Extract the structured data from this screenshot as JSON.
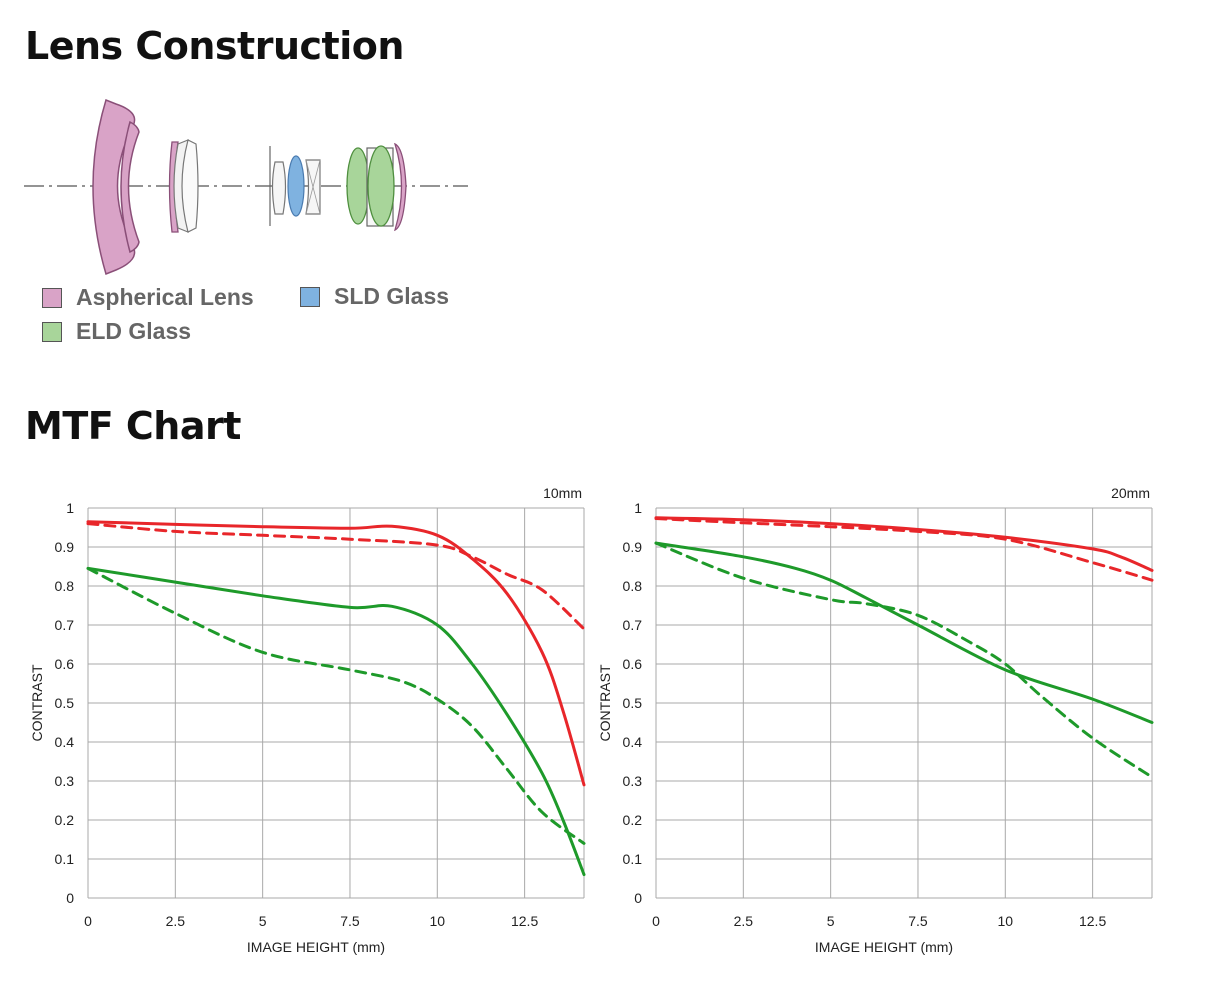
{
  "headings": {
    "lens_construction": "Lens Construction",
    "mtf_chart": "MTF Chart"
  },
  "legend": [
    {
      "label": "Aspherical Lens",
      "color": "#d9a3c7"
    },
    {
      "label": "SLD Glass",
      "color": "#7fb2e0"
    },
    {
      "label": "ELD Glass",
      "color": "#a8d59a"
    }
  ],
  "colors": {
    "red": "#e8262a",
    "green": "#1e9a2a",
    "aspherical": "#d9a3c7",
    "sld": "#7fb2e0",
    "eld": "#a8d59a"
  },
  "chart_data": [
    {
      "type": "line",
      "title": "10mm",
      "xlabel": "IMAGE HEIGHT (mm)",
      "ylabel": "CONTRAST",
      "xlim": [
        0,
        14.2
      ],
      "ylim": [
        0,
        1
      ],
      "x_ticks": [
        "0",
        "2.5",
        "5",
        "7.5",
        "10",
        "12.5"
      ],
      "y_ticks": [
        "0",
        "0.1",
        "0.2",
        "0.3",
        "0.4",
        "0.5",
        "0.6",
        "0.7",
        "0.8",
        "0.9",
        "1"
      ],
      "grid": true,
      "series": [
        {
          "color": "red",
          "dash": false,
          "points": [
            [
              0,
              0.965
            ],
            [
              2.5,
              0.958
            ],
            [
              5,
              0.952
            ],
            [
              7.5,
              0.948
            ],
            [
              8.7,
              0.953
            ],
            [
              10,
              0.93
            ],
            [
              11,
              0.87
            ],
            [
              12,
              0.78
            ],
            [
              13,
              0.63
            ],
            [
              13.6,
              0.48
            ],
            [
              14.2,
              0.29
            ]
          ]
        },
        {
          "color": "red",
          "dash": true,
          "points": [
            [
              0,
              0.96
            ],
            [
              2.5,
              0.94
            ],
            [
              5,
              0.93
            ],
            [
              7.5,
              0.92
            ],
            [
              10,
              0.905
            ],
            [
              11,
              0.875
            ],
            [
              12,
              0.83
            ],
            [
              13,
              0.79
            ],
            [
              14.2,
              0.69
            ]
          ]
        },
        {
          "color": "green",
          "dash": false,
          "points": [
            [
              0,
              0.845
            ],
            [
              2.5,
              0.81
            ],
            [
              5,
              0.775
            ],
            [
              7.5,
              0.745
            ],
            [
              8.7,
              0.748
            ],
            [
              10,
              0.7
            ],
            [
              11,
              0.6
            ],
            [
              12,
              0.47
            ],
            [
              13,
              0.32
            ],
            [
              13.6,
              0.2
            ],
            [
              14.2,
              0.06
            ]
          ]
        },
        {
          "color": "green",
          "dash": true,
          "points": [
            [
              0,
              0.845
            ],
            [
              2.5,
              0.73
            ],
            [
              5,
              0.63
            ],
            [
              7.5,
              0.585
            ],
            [
              9,
              0.555
            ],
            [
              10,
              0.51
            ],
            [
              11,
              0.44
            ],
            [
              12,
              0.33
            ],
            [
              13,
              0.22
            ],
            [
              14.2,
              0.14
            ]
          ]
        }
      ]
    },
    {
      "type": "line",
      "title": "20mm",
      "xlabel": "IMAGE HEIGHT (mm)",
      "ylabel": "CONTRAST",
      "xlim": [
        0,
        14.2
      ],
      "ylim": [
        0,
        1
      ],
      "x_ticks": [
        "0",
        "2.5",
        "5",
        "7.5",
        "10",
        "12.5"
      ],
      "y_ticks": [
        "0",
        "0.1",
        "0.2",
        "0.3",
        "0.4",
        "0.5",
        "0.6",
        "0.7",
        "0.8",
        "0.9",
        "1"
      ],
      "grid": true,
      "series": [
        {
          "color": "red",
          "dash": false,
          "points": [
            [
              0,
              0.975
            ],
            [
              2.5,
              0.97
            ],
            [
              5,
              0.96
            ],
            [
              7.5,
              0.945
            ],
            [
              10,
              0.925
            ],
            [
              12.5,
              0.895
            ],
            [
              13.3,
              0.875
            ],
            [
              14.2,
              0.84
            ]
          ]
        },
        {
          "color": "red",
          "dash": true,
          "points": [
            [
              0,
              0.973
            ],
            [
              2.5,
              0.962
            ],
            [
              5,
              0.952
            ],
            [
              7.5,
              0.94
            ],
            [
              10,
              0.92
            ],
            [
              12.5,
              0.86
            ],
            [
              14.2,
              0.815
            ]
          ]
        },
        {
          "color": "green",
          "dash": false,
          "points": [
            [
              0,
              0.91
            ],
            [
              2.5,
              0.875
            ],
            [
              4,
              0.845
            ],
            [
              5,
              0.815
            ],
            [
              6,
              0.77
            ],
            [
              7.5,
              0.7
            ],
            [
              10,
              0.585
            ],
            [
              12.5,
              0.51
            ],
            [
              14.2,
              0.45
            ]
          ]
        },
        {
          "color": "green",
          "dash": true,
          "points": [
            [
              0,
              0.91
            ],
            [
              2.5,
              0.82
            ],
            [
              5,
              0.765
            ],
            [
              6,
              0.755
            ],
            [
              7.5,
              0.725
            ],
            [
              9,
              0.655
            ],
            [
              10,
              0.6
            ],
            [
              11,
              0.52
            ],
            [
              12.5,
              0.41
            ],
            [
              14.2,
              0.31
            ]
          ]
        }
      ]
    }
  ]
}
